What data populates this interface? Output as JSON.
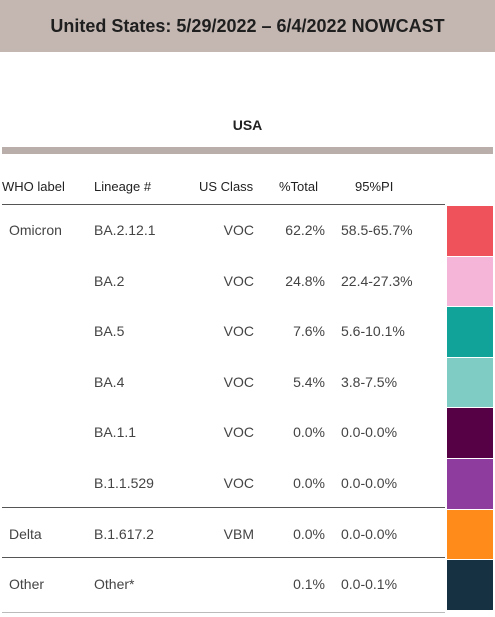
{
  "title": "United States: 5/29/2022 – 6/4/2022 NOWCAST",
  "region": "USA",
  "headers": [
    "WHO label",
    "Lineage #",
    "US Class",
    "%Total",
    "95%PI"
  ],
  "groups": [
    {
      "label": "Omicron",
      "rows": [
        {
          "lineage": "BA.2.12.1",
          "us_class": "VOC",
          "pct": "62.2%",
          "pi": "58.5-65.7%",
          "color": "#f0525c"
        },
        {
          "lineage": "BA.2",
          "us_class": "VOC",
          "pct": "24.8%",
          "pi": "22.4-27.3%",
          "color": "#f5b5d8"
        },
        {
          "lineage": "BA.5",
          "us_class": "VOC",
          "pct": "7.6%",
          "pi": "5.6-10.1%",
          "color": "#11a39a"
        },
        {
          "lineage": "BA.4",
          "us_class": "VOC",
          "pct": "5.4%",
          "pi": "3.8-7.5%",
          "color": "#7fccc5"
        },
        {
          "lineage": "BA.1.1",
          "us_class": "VOC",
          "pct": "0.0%",
          "pi": "0.0-0.0%",
          "color": "#560045"
        },
        {
          "lineage": "B.1.1.529",
          "us_class": "VOC",
          "pct": "0.0%",
          "pi": "0.0-0.0%",
          "color": "#8e3d9e"
        }
      ]
    },
    {
      "label": "Delta",
      "rows": [
        {
          "lineage": "B.1.617.2",
          "us_class": "VBM",
          "pct": "0.0%",
          "pi": "0.0-0.0%",
          "color": "#ff8c1a"
        }
      ]
    },
    {
      "label": "Other",
      "rows": [
        {
          "lineage": "Other*",
          "us_class": "",
          "pct": "0.1%",
          "pi": "0.0-0.1%",
          "color": "#163142"
        }
      ]
    }
  ]
}
